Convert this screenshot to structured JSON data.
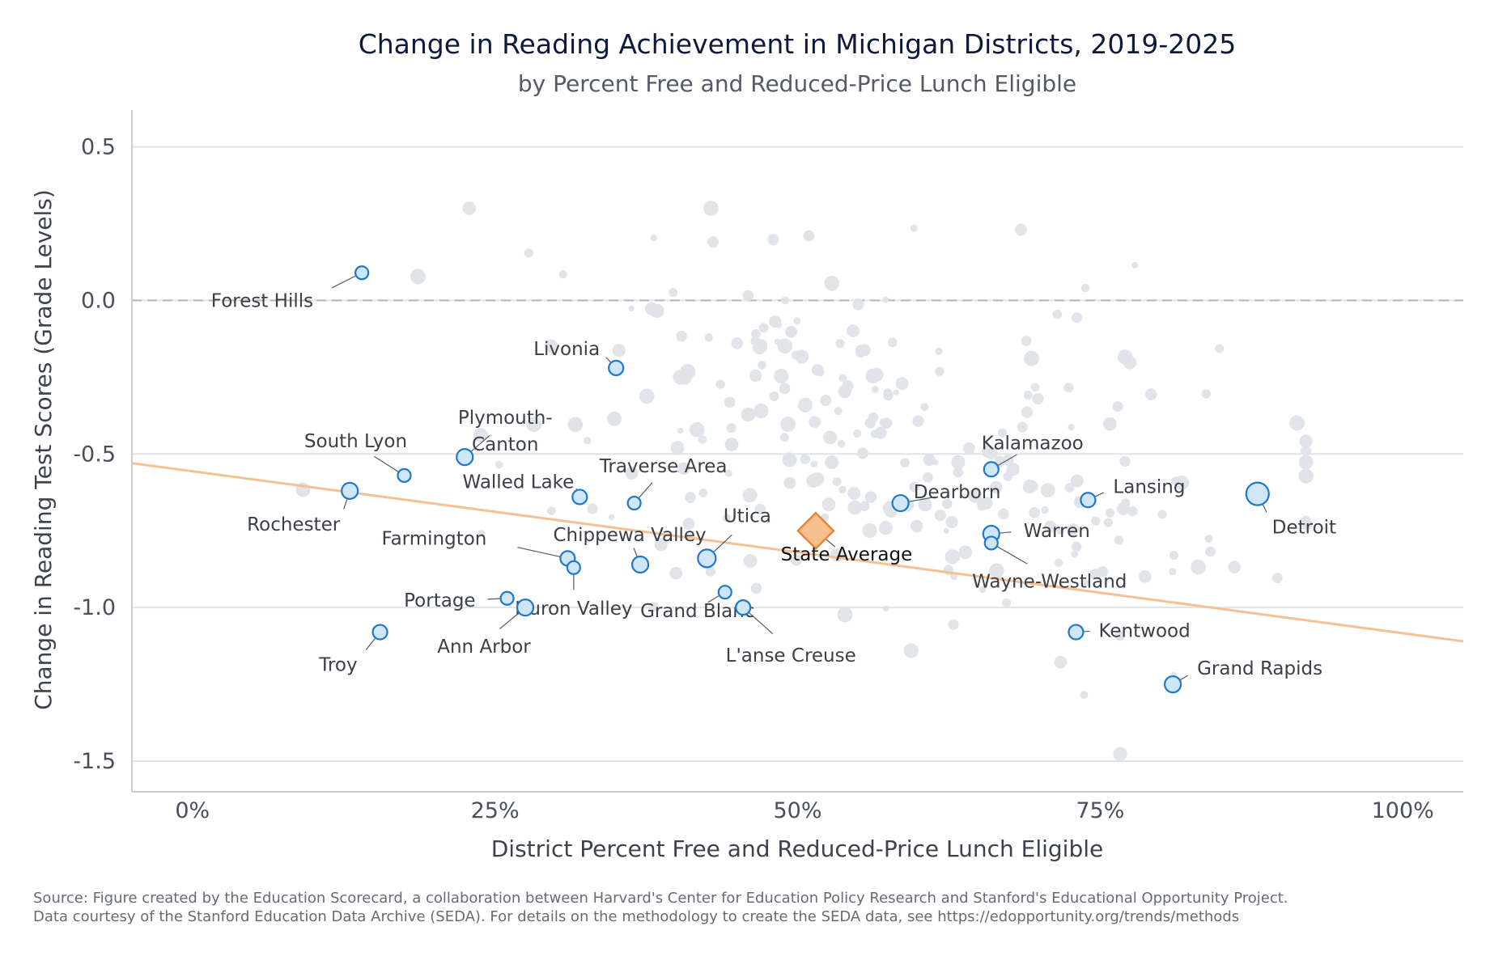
{
  "chart_data": {
    "type": "scatter",
    "title": "Change in Reading Achievement in Michigan Districts, 2019-2025",
    "subtitle": "by Percent Free and Reduced-Price Lunch Eligible",
    "xlabel": "District Percent Free and Reduced-Price Lunch Eligible",
    "ylabel": "Change in Reading Test Scores (Grade Levels)",
    "xlim": [
      -5,
      105
    ],
    "ylim": [
      -1.6,
      0.62
    ],
    "x_ticks": [
      0,
      25,
      50,
      75,
      100
    ],
    "x_tick_labels": [
      "0%",
      "25%",
      "50%",
      "75%",
      "100%"
    ],
    "y_ticks": [
      0.5,
      0.0,
      -0.5,
      -1.0,
      -1.5
    ],
    "y_tick_labels": [
      "0.5",
      "0.0",
      "-0.5",
      "-1.0",
      "-1.5"
    ],
    "reference_line_y": 0.0,
    "trend_line": {
      "x": [
        -5,
        105
      ],
      "y": [
        -0.53,
        -1.11
      ]
    },
    "state_average": {
      "label": "State Average",
      "x": 51.5,
      "y": -0.75
    },
    "highlighted": [
      {
        "label": "Forest Hills",
        "x": 14,
        "y": 0.09,
        "size": 8
      },
      {
        "label": "Livonia",
        "x": 35,
        "y": -0.22,
        "size": 9
      },
      {
        "label": "Plymouth-",
        "label2": "Canton",
        "x": 22.5,
        "y": -0.51,
        "size": 10
      },
      {
        "label": "South Lyon",
        "x": 17.5,
        "y": -0.57,
        "size": 8
      },
      {
        "label": "Rochester",
        "x": 13,
        "y": -0.62,
        "size": 10
      },
      {
        "label": "Walled Lake",
        "x": 32,
        "y": -0.64,
        "size": 9
      },
      {
        "label": "Traverse Area",
        "x": 36.5,
        "y": -0.66,
        "size": 8
      },
      {
        "label": "Utica",
        "x": 42.5,
        "y": -0.84,
        "size": 11
      },
      {
        "label": "Chippewa Valley",
        "x": 37,
        "y": -0.86,
        "size": 10
      },
      {
        "label": "Farmington",
        "x": 31,
        "y": -0.84,
        "size": 9
      },
      {
        "label": "Huron Valley",
        "x": 31.5,
        "y": -0.87,
        "size": 8
      },
      {
        "label": "Grand Blanc",
        "x": 44,
        "y": -0.95,
        "size": 8
      },
      {
        "label": "L'anse Creuse",
        "x": 45.5,
        "y": -1.0,
        "size": 9
      },
      {
        "label": "Portage",
        "x": 26,
        "y": -0.97,
        "size": 8
      },
      {
        "label": "Ann Arbor",
        "x": 27.5,
        "y": -1.0,
        "size": 10
      },
      {
        "label": "Troy",
        "x": 15.5,
        "y": -1.08,
        "size": 9
      },
      {
        "label": "Dearborn",
        "x": 58.5,
        "y": -0.66,
        "size": 10
      },
      {
        "label": "Kalamazoo",
        "x": 66,
        "y": -0.55,
        "size": 9
      },
      {
        "label": "Warren",
        "x": 66,
        "y": -0.76,
        "size": 10
      },
      {
        "label": "Wayne-Westland",
        "x": 66,
        "y": -0.79,
        "size": 8
      },
      {
        "label": "Lansing",
        "x": 74,
        "y": -0.65,
        "size": 9
      },
      {
        "label": "Detroit",
        "x": 88,
        "y": -0.63,
        "size": 14
      },
      {
        "label": "Kentwood",
        "x": 73,
        "y": -1.08,
        "size": 9
      },
      {
        "label": "Grand Rapids",
        "x": 81,
        "y": -1.25,
        "size": 10
      }
    ]
  },
  "source_line1": "Source: Figure created by the Education Scorecard, a collaboration between Harvard's Center for Education Policy Research and Stanford's Educational Opportunity Project.",
  "source_line2": "Data courtesy of the Stanford Education Data Archive (SEDA). For details on the methodology to create the SEDA data, see https://edopportunity.org/trends/methods",
  "colors": {
    "highlight_fill": "#cfe6f7",
    "highlight_stroke": "#1f78c8",
    "background_points": "#dfe3e8",
    "trend_line": "#f5c094",
    "state_fill": "#f9c08f",
    "state_stroke": "#e8833a"
  }
}
